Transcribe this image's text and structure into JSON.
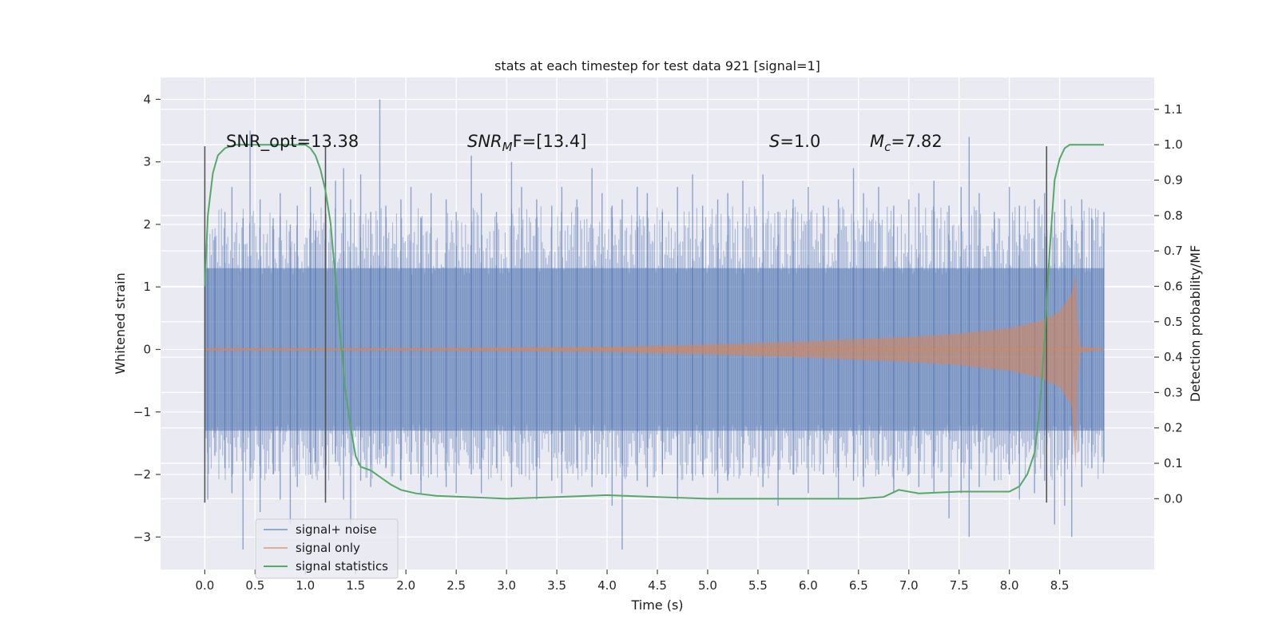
{
  "chart_data": {
    "type": "line",
    "title": "stats at each timestep for test data 921 [signal=1]",
    "xlabel": "Time (s)",
    "ylabel": "Whitened strain",
    "y2label": "Detection probability/MF",
    "xlim": [
      -0.44,
      9.44
    ],
    "ylim": [
      -3.52,
      4.35
    ],
    "y2lim": [
      -0.2,
      1.19
    ],
    "xticks": [
      "0.0",
      "0.5",
      "1.0",
      "1.5",
      "2.0",
      "2.5",
      "3.0",
      "3.5",
      "4.0",
      "4.5",
      "5.0",
      "5.5",
      "6.0",
      "6.5",
      "7.0",
      "7.5",
      "8.0",
      "8.5"
    ],
    "yticks": [
      "4",
      "3",
      "2",
      "1",
      "0",
      "−1",
      "−2",
      "−3"
    ],
    "y2ticks": [
      "1.1",
      "1.0",
      "0.9",
      "0.8",
      "0.7",
      "0.6",
      "0.5",
      "0.4",
      "0.3",
      "0.2",
      "0.1",
      "0.0"
    ],
    "grid": true,
    "legend_position": "lower-left",
    "annotations": {
      "snr_opt": "SNR_opt=13.38",
      "snr_mf_main": "SNR",
      "snr_mf_sub": "M",
      "snr_mf_rest": "F=[13.4]",
      "s_var": "S",
      "s_rest": "=1.0",
      "mc_var": "M",
      "mc_sub": "c",
      "mc_rest": "=7.82"
    },
    "vertical_markers": [
      0.0,
      1.2,
      8.37
    ],
    "series": [
      {
        "name": "signal+ noise",
        "color": "#4c72b0",
        "noise_envelope": {
          "core_range": [
            -1.3,
            1.3
          ],
          "time_range": [
            0.0,
            8.94
          ]
        },
        "spikes": [
          [
            0.03,
            1.3,
            -2.4
          ],
          [
            0.1,
            1.8,
            -1.7
          ],
          [
            0.2,
            2.2,
            -1.9
          ],
          [
            0.27,
            2.6,
            -2.3
          ],
          [
            0.38,
            2.1,
            -3.2
          ],
          [
            0.45,
            3.5,
            -2.1
          ],
          [
            0.55,
            2.4,
            -2.6
          ],
          [
            0.68,
            2.1,
            -2.0
          ],
          [
            0.75,
            2.5,
            -2.4
          ],
          [
            0.85,
            2.0,
            -2.8
          ],
          [
            0.92,
            2.3,
            -2.2
          ],
          [
            1.05,
            2.6,
            -2.0
          ],
          [
            1.1,
            1.9,
            -1.8
          ],
          [
            1.2,
            2.0,
            -2.3
          ],
          [
            1.3,
            2.7,
            -1.8
          ],
          [
            1.38,
            2.9,
            -2.4
          ],
          [
            1.45,
            2.4,
            -2.8
          ],
          [
            1.55,
            2.8,
            -2.1
          ],
          [
            1.65,
            2.2,
            -2.2
          ],
          [
            1.74,
            4.0,
            -1.6
          ],
          [
            1.8,
            2.3,
            -1.9
          ],
          [
            1.95,
            2.4,
            -2.1
          ],
          [
            2.05,
            2.6,
            -2.0
          ],
          [
            2.15,
            2.1,
            -2.3
          ],
          [
            2.25,
            2.5,
            -2.0
          ],
          [
            2.4,
            2.4,
            -2.2
          ],
          [
            2.5,
            2.2,
            -2.3
          ],
          [
            2.65,
            3.1,
            -2.0
          ],
          [
            2.75,
            2.5,
            -2.3
          ],
          [
            2.9,
            2.2,
            -1.9
          ],
          [
            3.05,
            3.0,
            -2.2
          ],
          [
            3.15,
            2.6,
            -2.0
          ],
          [
            3.3,
            2.4,
            -2.4
          ],
          [
            3.45,
            2.3,
            -2.1
          ],
          [
            3.55,
            2.6,
            -2.3
          ],
          [
            3.7,
            2.4,
            -1.9
          ],
          [
            3.85,
            2.9,
            -2.2
          ],
          [
            3.95,
            2.5,
            -2.0
          ],
          [
            4.05,
            2.3,
            -2.5
          ],
          [
            4.15,
            2.4,
            -3.2
          ],
          [
            4.3,
            2.6,
            -2.1
          ],
          [
            4.4,
            2.5,
            -2.2
          ],
          [
            4.55,
            2.2,
            -2.0
          ],
          [
            4.7,
            2.6,
            -2.4
          ],
          [
            4.85,
            2.8,
            -2.1
          ],
          [
            4.95,
            2.3,
            -2.0
          ],
          [
            5.1,
            2.4,
            -2.3
          ],
          [
            5.2,
            2.5,
            -2.1
          ],
          [
            5.35,
            2.7,
            -1.9
          ],
          [
            5.55,
            2.8,
            -2.2
          ],
          [
            5.7,
            2.2,
            -2.5
          ],
          [
            5.85,
            2.4,
            -2.0
          ],
          [
            6.0,
            2.6,
            -2.3
          ],
          [
            6.15,
            2.3,
            -2.0
          ],
          [
            6.3,
            2.4,
            -2.4
          ],
          [
            6.45,
            2.9,
            -2.1
          ],
          [
            6.55,
            2.5,
            -2.2
          ],
          [
            6.7,
            2.6,
            -2.0
          ],
          [
            6.85,
            2.3,
            -2.3
          ],
          [
            7.0,
            2.4,
            -2.0
          ],
          [
            7.1,
            2.5,
            -2.2
          ],
          [
            7.25,
            2.7,
            -2.3
          ],
          [
            7.4,
            2.3,
            -2.7
          ],
          [
            7.52,
            2.6,
            -2.3
          ],
          [
            7.6,
            3.4,
            -3.0
          ],
          [
            7.7,
            2.5,
            -2.2
          ],
          [
            7.85,
            2.2,
            -2.1
          ],
          [
            8.0,
            2.6,
            -2.0
          ],
          [
            8.1,
            2.3,
            -2.4
          ],
          [
            8.25,
            2.4,
            -2.3
          ],
          [
            8.35,
            2.5,
            -2.1
          ],
          [
            8.45,
            2.2,
            -2.8
          ],
          [
            8.55,
            2.4,
            -2.5
          ],
          [
            8.62,
            2.0,
            -3.0
          ],
          [
            8.72,
            2.4,
            -2.2
          ],
          [
            8.82,
            2.1,
            -1.9
          ],
          [
            8.94,
            2.2,
            -1.8
          ]
        ]
      },
      {
        "name": "signal only",
        "color": "#dd8452",
        "envelope": [
          [
            0.0,
            0.02
          ],
          [
            1.0,
            0.02
          ],
          [
            2.0,
            0.02
          ],
          [
            3.0,
            0.03
          ],
          [
            4.0,
            0.04
          ],
          [
            5.0,
            0.08
          ],
          [
            6.0,
            0.13
          ],
          [
            7.0,
            0.2
          ],
          [
            7.5,
            0.25
          ],
          [
            8.0,
            0.34
          ],
          [
            8.3,
            0.45
          ],
          [
            8.5,
            0.6
          ],
          [
            8.62,
            0.9
          ],
          [
            8.66,
            1.2
          ],
          [
            8.68,
            0.5
          ],
          [
            8.7,
            0.05
          ],
          [
            8.94,
            0.01
          ]
        ]
      },
      {
        "name": "signal statistics",
        "color": "#55a868",
        "x": [
          0.0,
          0.03,
          0.08,
          0.13,
          0.2,
          0.3,
          0.5,
          0.7,
          0.9,
          1.0,
          1.05,
          1.1,
          1.15,
          1.2,
          1.25,
          1.3,
          1.35,
          1.4,
          1.45,
          1.5,
          1.55,
          1.65,
          1.75,
          1.85,
          1.95,
          2.1,
          2.3,
          2.6,
          3.0,
          3.5,
          4.0,
          4.5,
          5.0,
          5.5,
          6.0,
          6.5,
          6.75,
          6.9,
          7.1,
          7.5,
          7.8,
          8.0,
          8.1,
          8.18,
          8.25,
          8.3,
          8.35,
          8.4,
          8.45,
          8.5,
          8.55,
          8.6,
          8.7,
          8.94
        ],
        "y": [
          0.6,
          0.8,
          0.92,
          0.97,
          0.99,
          1.0,
          1.0,
          1.0,
          1.0,
          1.0,
          0.99,
          0.97,
          0.93,
          0.87,
          0.78,
          0.62,
          0.45,
          0.3,
          0.2,
          0.12,
          0.09,
          0.08,
          0.06,
          0.04,
          0.025,
          0.015,
          0.008,
          0.005,
          0.0,
          0.005,
          0.01,
          0.005,
          0.0,
          0.0,
          0.0,
          0.0,
          0.005,
          0.025,
          0.015,
          0.02,
          0.02,
          0.02,
          0.035,
          0.07,
          0.13,
          0.25,
          0.45,
          0.7,
          0.9,
          0.96,
          0.99,
          1.0,
          1.0,
          1.0
        ]
      }
    ]
  }
}
